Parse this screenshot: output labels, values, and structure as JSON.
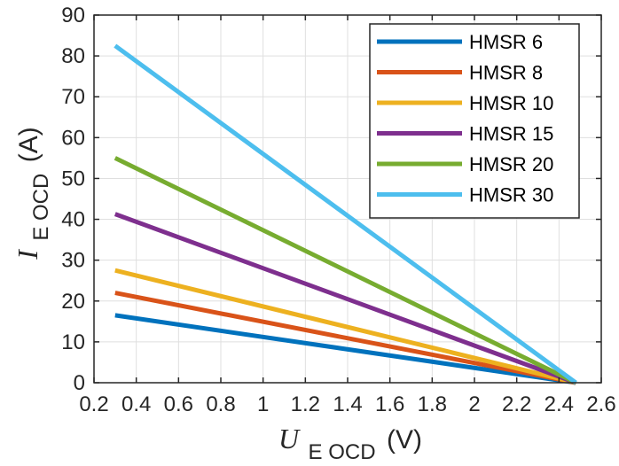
{
  "chart_data": {
    "type": "line",
    "x_var": "U",
    "x_sub": "E OCD",
    "x_unit": "(V)",
    "y_var": "I",
    "y_sub": "E OCD",
    "y_unit": "(A)",
    "xlim": [
      0.2,
      2.6
    ],
    "ylim": [
      0,
      90
    ],
    "x_ticks": [
      0.2,
      0.4,
      0.6,
      0.8,
      1,
      1.2,
      1.4,
      1.6,
      1.8,
      2,
      2.2,
      2.4,
      2.6
    ],
    "x_tick_labels": [
      "0.2",
      "0.4",
      "0.6",
      "0.8",
      "1",
      "1.2",
      "1.4",
      "1.6",
      "1.8",
      "2",
      "2.2",
      "2.4",
      "2.6"
    ],
    "y_ticks": [
      0,
      10,
      20,
      30,
      40,
      50,
      60,
      70,
      80,
      90
    ],
    "y_tick_labels": [
      "0",
      "10",
      "20",
      "30",
      "40",
      "50",
      "60",
      "70",
      "80",
      "90"
    ],
    "grid": true,
    "legend_position": "top-right",
    "series": [
      {
        "name": "HMSR 6",
        "color": "#0072bd",
        "x": [
          0.3,
          2.48
        ],
        "y": [
          16.5,
          0
        ]
      },
      {
        "name": "HMSR 8",
        "color": "#d95319",
        "x": [
          0.3,
          2.48
        ],
        "y": [
          22,
          0
        ]
      },
      {
        "name": "HMSR 10",
        "color": "#edb120",
        "x": [
          0.3,
          2.48
        ],
        "y": [
          27.5,
          0
        ]
      },
      {
        "name": "HMSR 15",
        "color": "#7e2f8e",
        "x": [
          0.3,
          2.48
        ],
        "y": [
          41.3,
          0
        ]
      },
      {
        "name": "HMSR 20",
        "color": "#77ac30",
        "x": [
          0.3,
          2.48
        ],
        "y": [
          55,
          0
        ]
      },
      {
        "name": "HMSR 30",
        "color": "#4dbeee",
        "x": [
          0.3,
          2.48
        ],
        "y": [
          82.5,
          0
        ]
      }
    ]
  }
}
